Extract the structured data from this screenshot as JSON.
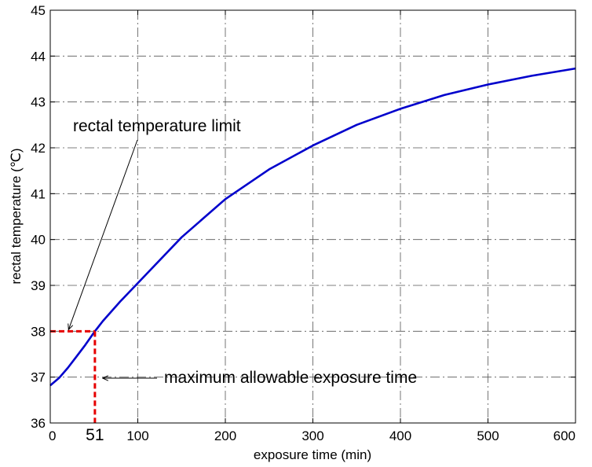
{
  "chart_data": {
    "type": "line",
    "xlabel": "exposure time (min)",
    "ylabel": "rectal temperature (℃)",
    "xlim": [
      0,
      600
    ],
    "ylim": [
      36,
      45
    ],
    "x_ticks": [
      "0",
      "100",
      "200",
      "300",
      "400",
      "500",
      "600"
    ],
    "y_ticks": [
      "36",
      "37",
      "38",
      "39",
      "40",
      "41",
      "42",
      "43",
      "44",
      "45"
    ],
    "grid": true,
    "series": [
      {
        "color": "#0000cc",
        "x": [
          0,
          10,
          20,
          30,
          40,
          51,
          60,
          80,
          100,
          150,
          200,
          250,
          300,
          350,
          400,
          450,
          500,
          550,
          600
        ],
        "y": [
          36.82,
          36.98,
          37.2,
          37.45,
          37.7,
          38.0,
          38.22,
          38.65,
          39.05,
          40.05,
          40.88,
          41.53,
          42.05,
          42.5,
          42.85,
          43.15,
          43.38,
          43.57,
          43.73
        ]
      }
    ],
    "reference": {
      "color": "#e60000",
      "x": 51,
      "y": 38,
      "x_marker_label": "51"
    },
    "annotations": [
      {
        "text": "rectal temperature limit",
        "target_x": 20,
        "target_y": 38
      },
      {
        "text": "maximum allowable exposure time",
        "target_x": 58,
        "target_y": 36.95
      }
    ]
  }
}
